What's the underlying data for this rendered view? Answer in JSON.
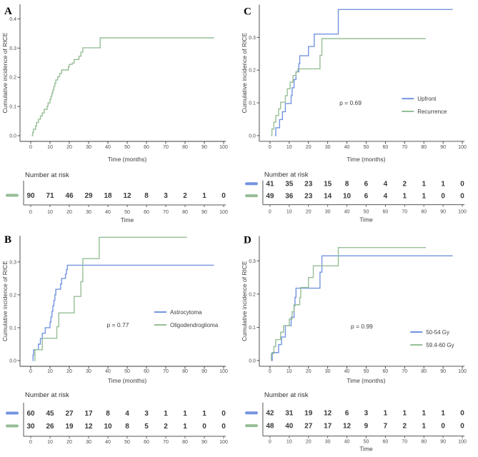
{
  "palette": {
    "blue": "#7494E0",
    "green": "#96BE96",
    "axis_line": "#3C3C3C",
    "risk_line": "#555555",
    "text": "#3D3D3D",
    "tick_text": "#4D4D4D"
  },
  "shared": {
    "y_label": "Cumulative incidence of RICE",
    "x_label": "Time (months)",
    "risk_header": "Number at risk",
    "risk_x_label": "Time",
    "x_ticks": [
      0,
      10,
      20,
      30,
      40,
      50,
      60,
      70,
      80,
      90,
      100
    ]
  },
  "chart_data": [
    {
      "id": "A",
      "type": "line",
      "subtype": "step-cumulative-incidence",
      "label": "A",
      "y_ticks": [
        0.0,
        0.1,
        0.2,
        0.3,
        0.4
      ],
      "ylim": [
        0,
        0.45
      ],
      "xlim": [
        -5,
        103
      ],
      "p_value": null,
      "risk_time_label": true,
      "series": [
        {
          "name": "",
          "color": "green",
          "points": [
            [
              0.5,
              0
            ],
            [
              1,
              0.011
            ],
            [
              1.5,
              0.022
            ],
            [
              2.5,
              0.033
            ],
            [
              3,
              0.045
            ],
            [
              4,
              0.056
            ],
            [
              5,
              0.067
            ],
            [
              6,
              0.078
            ],
            [
              7,
              0.09
            ],
            [
              8.5,
              0.101
            ],
            [
              9,
              0.112
            ],
            [
              10,
              0.124
            ],
            [
              10.5,
              0.135
            ],
            [
              11,
              0.146
            ],
            [
              11.5,
              0.157
            ],
            [
              12,
              0.169
            ],
            [
              12.5,
              0.18
            ],
            [
              13,
              0.191
            ],
            [
              14,
              0.202
            ],
            [
              15,
              0.213
            ],
            [
              16,
              0.225
            ],
            [
              19.5,
              0.236
            ],
            [
              20,
              0.244
            ],
            [
              21.5,
              0.249
            ],
            [
              22.5,
              0.261
            ],
            [
              25,
              0.272
            ],
            [
              26,
              0.286
            ],
            [
              27,
              0.301
            ],
            [
              36,
              0.335
            ],
            [
              95,
              0.335
            ]
          ],
          "at_risk": [
            90,
            71,
            46,
            29,
            18,
            12,
            8,
            3,
            2,
            1,
            0
          ]
        }
      ]
    },
    {
      "id": "C",
      "type": "line",
      "subtype": "step-cumulative-incidence",
      "label": "C",
      "y_ticks": [
        0.0,
        0.1,
        0.2,
        0.3
      ],
      "ylim": [
        0,
        0.4
      ],
      "xlim": [
        -5,
        103
      ],
      "p_value": "p = 0.69",
      "risk_time_label": true,
      "series": [
        {
          "name": "Upfront",
          "color": "blue",
          "points": [
            [
              2.5,
              0
            ],
            [
              3,
              0.024
            ],
            [
              5,
              0.049
            ],
            [
              6.5,
              0.073
            ],
            [
              8,
              0.098
            ],
            [
              11,
              0.122
            ],
            [
              11.5,
              0.146
            ],
            [
              12.5,
              0.171
            ],
            [
              13.5,
              0.195
            ],
            [
              15,
              0.22
            ],
            [
              15.5,
              0.244
            ],
            [
              20,
              0.272
            ],
            [
              23,
              0.31
            ],
            [
              35.5,
              0.385
            ],
            [
              95,
              0.385
            ]
          ],
          "at_risk": [
            41,
            35,
            23,
            15,
            8,
            6,
            4,
            2,
            1,
            1,
            0
          ]
        },
        {
          "name": "Recurrence",
          "color": "green",
          "points": [
            [
              0.5,
              0
            ],
            [
              1,
              0.02
            ],
            [
              2,
              0.041
            ],
            [
              3,
              0.061
            ],
            [
              4.5,
              0.082
            ],
            [
              5.5,
              0.102
            ],
            [
              8,
              0.122
            ],
            [
              9,
              0.143
            ],
            [
              10.5,
              0.163
            ],
            [
              12,
              0.184
            ],
            [
              13.5,
              0.194
            ],
            [
              14.5,
              0.204
            ],
            [
              26,
              0.245
            ],
            [
              27,
              0.296
            ],
            [
              81,
              0.296
            ]
          ],
          "at_risk": [
            49,
            36,
            23,
            14,
            10,
            6,
            4,
            1,
            1,
            0,
            0
          ]
        }
      ]
    },
    {
      "id": "B",
      "type": "line",
      "subtype": "step-cumulative-incidence",
      "label": "B",
      "y_ticks": [
        0.0,
        0.1,
        0.2,
        0.3
      ],
      "ylim": [
        0,
        0.38
      ],
      "xlim": [
        -5,
        103
      ],
      "p_value": "p = 0.77",
      "risk_time_label": false,
      "series": [
        {
          "name": "Astrocytoma",
          "color": "blue",
          "points": [
            [
              1,
              0
            ],
            [
              1.2,
              0.017
            ],
            [
              1.5,
              0.033
            ],
            [
              4,
              0.05
            ],
            [
              5,
              0.067
            ],
            [
              6,
              0.083
            ],
            [
              7.5,
              0.1
            ],
            [
              10,
              0.117
            ],
            [
              10.5,
              0.133
            ],
            [
              11,
              0.15
            ],
            [
              11.5,
              0.167
            ],
            [
              12,
              0.183
            ],
            [
              12.5,
              0.2
            ],
            [
              13,
              0.217
            ],
            [
              15.5,
              0.233
            ],
            [
              16,
              0.25
            ],
            [
              18,
              0.263
            ],
            [
              18.5,
              0.277
            ],
            [
              19,
              0.29
            ],
            [
              95,
              0.29
            ]
          ],
          "at_risk": [
            60,
            45,
            27,
            17,
            8,
            4,
            3,
            1,
            1,
            1,
            0
          ]
        },
        {
          "name": "Oligodendroglioma",
          "color": "green",
          "points": [
            [
              2,
              0
            ],
            [
              2.2,
              0.033
            ],
            [
              6,
              0.068
            ],
            [
              13.5,
              0.103
            ],
            [
              14.5,
              0.145
            ],
            [
              22.5,
              0.195
            ],
            [
              26,
              0.24
            ],
            [
              27,
              0.31
            ],
            [
              35.5,
              0.375
            ],
            [
              81,
              0.375
            ]
          ],
          "at_risk": [
            30,
            26,
            19,
            12,
            10,
            8,
            5,
            2,
            1,
            0,
            0
          ]
        }
      ]
    },
    {
      "id": "D",
      "type": "line",
      "subtype": "step-cumulative-incidence",
      "label": "D",
      "y_ticks": [
        0.0,
        0.1,
        0.2,
        0.3
      ],
      "ylim": [
        0,
        0.375
      ],
      "xlim": [
        -5,
        103
      ],
      "p_value": "p = 0.99",
      "risk_time_label": true,
      "series": [
        {
          "name": "50-54 Gy",
          "color": "blue",
          "points": [
            [
              1,
              0
            ],
            [
              1.2,
              0.024
            ],
            [
              4.5,
              0.048
            ],
            [
              6,
              0.071
            ],
            [
              8,
              0.105
            ],
            [
              11,
              0.13
            ],
            [
              12.5,
              0.165
            ],
            [
              13,
              0.19
            ],
            [
              13.5,
              0.218
            ],
            [
              26,
              0.266
            ],
            [
              27,
              0.315
            ],
            [
              95,
              0.315
            ]
          ],
          "at_risk": [
            42,
            31,
            19,
            12,
            6,
            3,
            1,
            1,
            1,
            1,
            0
          ]
        },
        {
          "name": "59.4-60 Gy",
          "color": "green",
          "points": [
            [
              0.5,
              0
            ],
            [
              0.7,
              0.021
            ],
            [
              2,
              0.042
            ],
            [
              3,
              0.063
            ],
            [
              5.5,
              0.085
            ],
            [
              7,
              0.105
            ],
            [
              10,
              0.125
            ],
            [
              11.5,
              0.147
            ],
            [
              12.5,
              0.168
            ],
            [
              15.5,
              0.19
            ],
            [
              16,
              0.22
            ],
            [
              20,
              0.25
            ],
            [
              22.5,
              0.285
            ],
            [
              35.5,
              0.34
            ],
            [
              81,
              0.34
            ]
          ],
          "at_risk": [
            48,
            40,
            27,
            17,
            12,
            9,
            7,
            2,
            1,
            0,
            0
          ]
        }
      ]
    }
  ]
}
